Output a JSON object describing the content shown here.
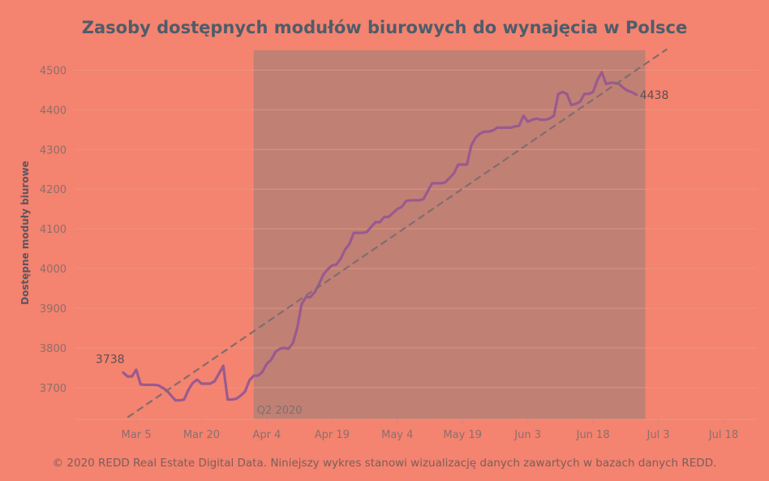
{
  "chart_data": {
    "type": "line",
    "title": "Zasoby dostępnych modułów biurowych do wynajęcia w Polsce",
    "ylabel": "Dostępne moduły biurowe",
    "xlabel": "",
    "ylim": [
      3620,
      4550
    ],
    "yticks": [
      3700,
      3800,
      3900,
      4000,
      4100,
      4200,
      4300,
      4400,
      4500
    ],
    "xticks": [
      "Mar 5",
      "Mar 20",
      "Apr 4",
      "Apr 19",
      "May 4",
      "May 19",
      "Jun 3",
      "Jun 18",
      "Jul 3",
      "Jul 18"
    ],
    "year": 2020,
    "series": [
      {
        "type": "line",
        "color": "#9a5a8f",
        "points": [
          [
            "2020-03-02",
            3738
          ],
          [
            "2020-03-03",
            3728
          ],
          [
            "2020-03-04",
            3728
          ],
          [
            "2020-03-05",
            3745
          ],
          [
            "2020-03-06",
            3708
          ],
          [
            "2020-03-07",
            3707
          ],
          [
            "2020-03-08",
            3707
          ],
          [
            "2020-03-09",
            3707
          ],
          [
            "2020-03-10",
            3706
          ],
          [
            "2020-03-11",
            3700
          ],
          [
            "2020-03-12",
            3693
          ],
          [
            "2020-03-13",
            3680
          ],
          [
            "2020-03-14",
            3668
          ],
          [
            "2020-03-15",
            3668
          ],
          [
            "2020-03-16",
            3670
          ],
          [
            "2020-03-17",
            3695
          ],
          [
            "2020-03-18",
            3712
          ],
          [
            "2020-03-19",
            3720
          ],
          [
            "2020-03-20",
            3710
          ],
          [
            "2020-03-21",
            3710
          ],
          [
            "2020-03-22",
            3710
          ],
          [
            "2020-03-23",
            3716
          ],
          [
            "2020-03-24",
            3735
          ],
          [
            "2020-03-25",
            3755
          ],
          [
            "2020-03-26",
            3670
          ],
          [
            "2020-03-27",
            3670
          ],
          [
            "2020-03-28",
            3672
          ],
          [
            "2020-03-29",
            3680
          ],
          [
            "2020-03-30",
            3690
          ],
          [
            "2020-03-31",
            3718
          ],
          [
            "2020-04-01",
            3730
          ],
          [
            "2020-04-02",
            3730
          ],
          [
            "2020-04-03",
            3740
          ],
          [
            "2020-04-04",
            3760
          ],
          [
            "2020-04-05",
            3770
          ],
          [
            "2020-04-06",
            3790
          ],
          [
            "2020-04-07",
            3798
          ],
          [
            "2020-04-08",
            3800
          ],
          [
            "2020-04-09",
            3798
          ],
          [
            "2020-04-10",
            3812
          ],
          [
            "2020-04-11",
            3850
          ],
          [
            "2020-04-12",
            3910
          ],
          [
            "2020-04-13",
            3928
          ],
          [
            "2020-04-14",
            3928
          ],
          [
            "2020-04-15",
            3940
          ],
          [
            "2020-04-16",
            3960
          ],
          [
            "2020-04-17",
            3985
          ],
          [
            "2020-04-18",
            3998
          ],
          [
            "2020-04-19",
            4008
          ],
          [
            "2020-04-20",
            4010
          ],
          [
            "2020-04-21",
            4025
          ],
          [
            "2020-04-22",
            4048
          ],
          [
            "2020-04-23",
            4062
          ],
          [
            "2020-04-24",
            4090
          ],
          [
            "2020-04-25",
            4090
          ],
          [
            "2020-04-26",
            4090
          ],
          [
            "2020-04-27",
            4092
          ],
          [
            "2020-04-28",
            4105
          ],
          [
            "2020-04-29",
            4117
          ],
          [
            "2020-04-30",
            4117
          ],
          [
            "2020-05-01",
            4130
          ],
          [
            "2020-05-02",
            4130
          ],
          [
            "2020-05-03",
            4140
          ],
          [
            "2020-05-04",
            4150
          ],
          [
            "2020-05-05",
            4155
          ],
          [
            "2020-05-06",
            4170
          ],
          [
            "2020-05-07",
            4172
          ],
          [
            "2020-05-08",
            4172
          ],
          [
            "2020-05-09",
            4172
          ],
          [
            "2020-05-10",
            4175
          ],
          [
            "2020-05-11",
            4195
          ],
          [
            "2020-05-12",
            4215
          ],
          [
            "2020-05-13",
            4215
          ],
          [
            "2020-05-14",
            4215
          ],
          [
            "2020-05-15",
            4217
          ],
          [
            "2020-05-16",
            4228
          ],
          [
            "2020-05-17",
            4240
          ],
          [
            "2020-05-18",
            4262
          ],
          [
            "2020-05-19",
            4262
          ],
          [
            "2020-05-20",
            4262
          ],
          [
            "2020-05-21",
            4310
          ],
          [
            "2020-05-22",
            4330
          ],
          [
            "2020-05-23",
            4340
          ],
          [
            "2020-05-24",
            4345
          ],
          [
            "2020-05-25",
            4345
          ],
          [
            "2020-05-26",
            4348
          ],
          [
            "2020-05-27",
            4355
          ],
          [
            "2020-05-28",
            4355
          ],
          [
            "2020-05-29",
            4355
          ],
          [
            "2020-05-30",
            4355
          ],
          [
            "2020-05-31",
            4358
          ],
          [
            "2020-06-01",
            4360
          ],
          [
            "2020-06-02",
            4385
          ],
          [
            "2020-06-03",
            4370
          ],
          [
            "2020-06-04",
            4375
          ],
          [
            "2020-06-05",
            4378
          ],
          [
            "2020-06-06",
            4375
          ],
          [
            "2020-06-07",
            4375
          ],
          [
            "2020-06-08",
            4378
          ],
          [
            "2020-06-09",
            4385
          ],
          [
            "2020-06-10",
            4440
          ],
          [
            "2020-06-11",
            4445
          ],
          [
            "2020-06-12",
            4440
          ],
          [
            "2020-06-13",
            4412
          ],
          [
            "2020-06-14",
            4415
          ],
          [
            "2020-06-15",
            4420
          ],
          [
            "2020-06-16",
            4440
          ],
          [
            "2020-06-17",
            4440
          ],
          [
            "2020-06-18",
            4445
          ],
          [
            "2020-06-19",
            4475
          ],
          [
            "2020-06-20",
            4495
          ],
          [
            "2020-06-21",
            4465
          ],
          [
            "2020-06-22",
            4468
          ],
          [
            "2020-06-23",
            4468
          ],
          [
            "2020-06-24",
            4465
          ],
          [
            "2020-06-25",
            4455
          ],
          [
            "2020-06-26",
            4448
          ],
          [
            "2020-06-27",
            4444
          ],
          [
            "2020-06-28",
            4438
          ]
        ]
      },
      {
        "type": "trend",
        "style": "dashed",
        "color": "#7e6e70",
        "points": [
          [
            "2020-03-03",
            3625
          ],
          [
            "2020-07-05",
            4553
          ]
        ]
      }
    ],
    "annotations": [
      {
        "text": "3738",
        "at": "start"
      },
      {
        "text": "4438",
        "at": "end"
      }
    ],
    "shaded_band": {
      "label": "Q2 2020",
      "x_start": "2020-04-01",
      "x_end": "2020-06-30",
      "color": "#c08074"
    },
    "grid": true
  },
  "footer": "© 2020 REDD Real Estate Digital Data. Niniejszy wykres stanowi wizualizację danych zawartych w bazach danych REDD."
}
